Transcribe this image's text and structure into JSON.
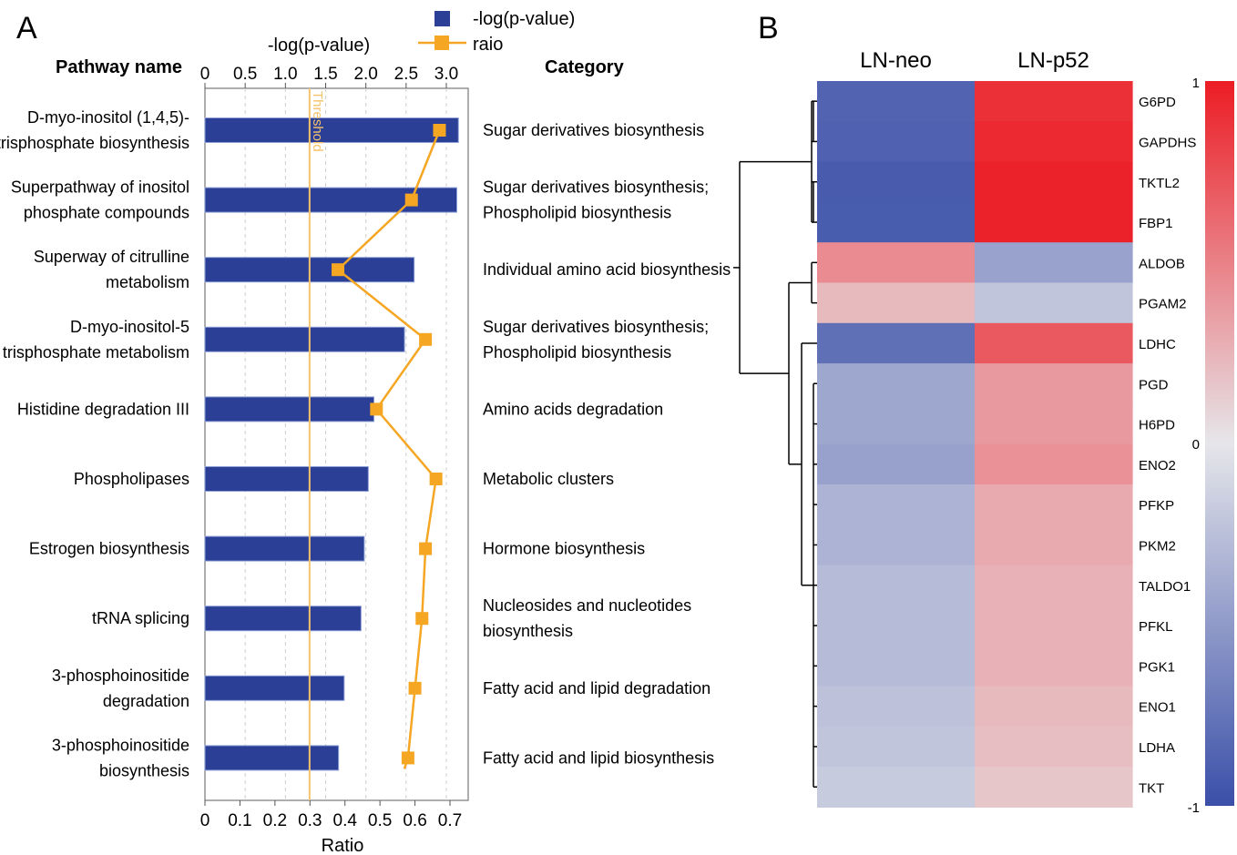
{
  "panels": {
    "a_letter": "A",
    "b_letter": "B"
  },
  "colors": {
    "bar": "#2b3f96",
    "ratio": "#f5a623",
    "threshold": "#f5c36b",
    "heat_low": "#3a4fa8",
    "heat_mid": "#e6e6ea",
    "heat_high": "#ec1c24"
  },
  "chart_data": [
    {
      "type": "bar",
      "orientation": "horizontal",
      "header_left": "Pathway name",
      "header_right": "Category",
      "top_axis_label": "-log(p-value)",
      "xlabel": "Ratio",
      "top_ticks": [
        "0",
        "0.5",
        "1.0",
        "1.5",
        "2.0",
        "2.5",
        "3.0"
      ],
      "bottom_ticks": [
        "0",
        "0.1",
        "0.2",
        "0.3",
        "0.4",
        "0.5",
        "0.6",
        "0.7"
      ],
      "xlim_top": [
        0,
        3.3
      ],
      "xlim_bottom": [
        0,
        0.77
      ],
      "threshold": {
        "label": "Threshold",
        "value": 1.3
      },
      "legend": {
        "bar_label": "-log(p-value)",
        "line_label": "raio"
      },
      "categories": [
        [
          "D-myo-inositol (1,4,5)-",
          "trisphosphate biosynthesis"
        ],
        [
          "Superpathway of inositol",
          "phosphate compounds"
        ],
        [
          "Superway of citrulline",
          "metabolism"
        ],
        [
          "D-myo-inositol-5",
          "trisphosphate metabolism"
        ],
        [
          "Histidine degradation III"
        ],
        [
          "Phospholipases"
        ],
        [
          "Estrogen biosynthesis"
        ],
        [
          "tRNA splicing"
        ],
        [
          "3-phosphoinositide",
          "degradation"
        ],
        [
          "3-phosphoinositide",
          "biosynthesis"
        ]
      ],
      "category_labels": [
        [
          "Sugar derivatives biosynthesis"
        ],
        [
          "Sugar derivatives biosynthesis;",
          "Phospholipid biosynthesis"
        ],
        [
          "Individual amino acid biosynthesis"
        ],
        [
          "Sugar derivatives biosynthesis;",
          "Phospholipid biosynthesis"
        ],
        [
          "Amino acids degradation"
        ],
        [
          "Metabolic clusters"
        ],
        [
          "Hormone biosynthesis"
        ],
        [
          "Nucleosides and nucleotides",
          "biosynthesis"
        ],
        [
          "Fatty acid and lipid degradation"
        ],
        [
          "Fatty acid and lipid biosynthesis"
        ]
      ],
      "series": [
        {
          "name": "-log(p-value)",
          "type": "bar",
          "values": [
            3.15,
            3.13,
            2.6,
            2.48,
            2.1,
            2.03,
            1.98,
            1.94,
            1.73,
            1.66
          ]
        },
        {
          "name": "raio",
          "type": "line",
          "values": [
            0.67,
            0.59,
            0.38,
            0.63,
            0.49,
            0.66,
            0.63,
            0.62,
            0.6,
            0.58
          ]
        }
      ]
    },
    {
      "type": "heatmap",
      "columns": [
        "LN-neo",
        "LN-p52"
      ],
      "rows": [
        "G6PD",
        "GAPDHS",
        "TKTL2",
        "FBP1",
        "ALDOB",
        "PGAM2",
        "LDHC",
        "PGD",
        "H6PD",
        "ENO2",
        "PFKP",
        "PKM2",
        "TALDO1",
        "PFKL",
        "PGK1",
        "ENO1",
        "LDHA",
        "TKT"
      ],
      "values": [
        [
          -0.86,
          0.9
        ],
        [
          -0.88,
          0.94
        ],
        [
          -0.92,
          0.97
        ],
        [
          -0.91,
          0.97
        ],
        [
          0.45,
          -0.45
        ],
        [
          0.22,
          -0.22
        ],
        [
          -0.78,
          0.7
        ],
        [
          -0.42,
          0.38
        ],
        [
          -0.42,
          0.38
        ],
        [
          -0.46,
          0.42
        ],
        [
          -0.34,
          0.3
        ],
        [
          -0.34,
          0.3
        ],
        [
          -0.28,
          0.26
        ],
        [
          -0.28,
          0.26
        ],
        [
          -0.28,
          0.26
        ],
        [
          -0.24,
          0.22
        ],
        [
          -0.22,
          0.2
        ],
        [
          -0.18,
          0.16
        ]
      ],
      "colorbar_ticks": [
        "1",
        "0",
        "-1"
      ],
      "vlim": [
        -1,
        1
      ]
    }
  ]
}
